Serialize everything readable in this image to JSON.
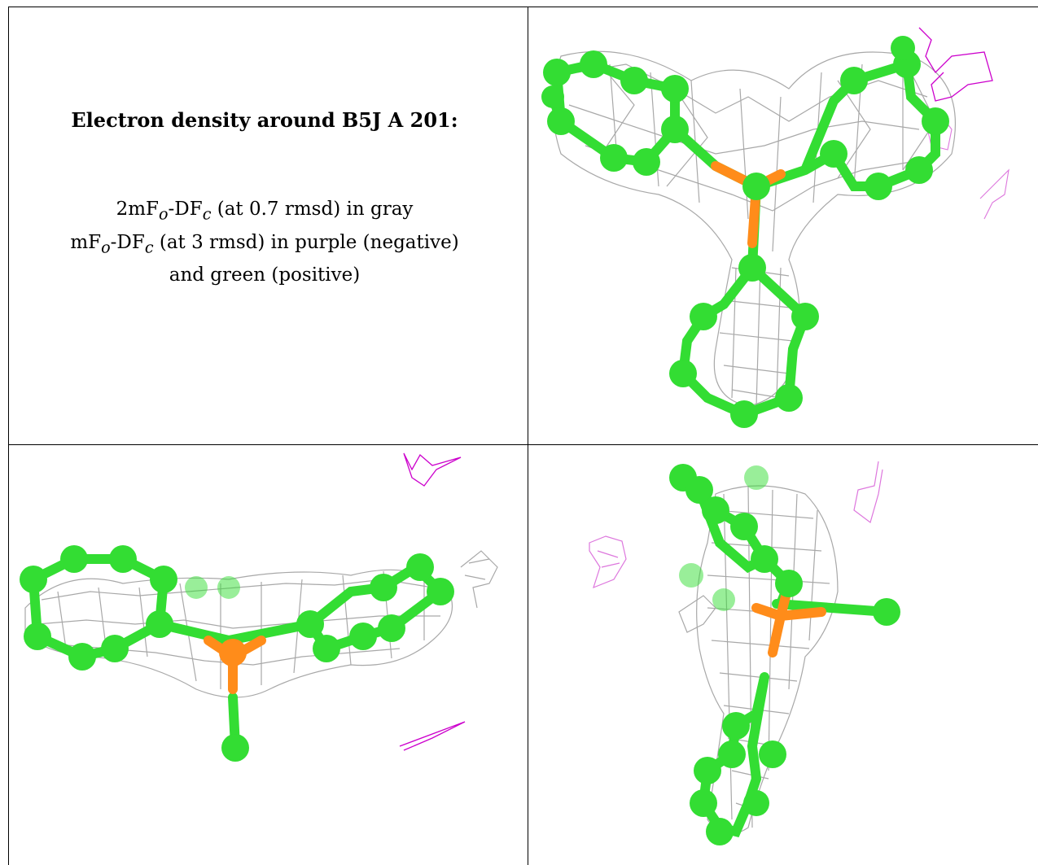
{
  "caption": {
    "title": "Electron density around B5J A 201:",
    "line1": {
      "pre": "2mF",
      "sub1": "o",
      "mid": "-DF",
      "sub2": "c",
      "post": " (at 0.7 rmsd) in gray"
    },
    "line2": {
      "pre": "mF",
      "sub1": "o",
      "mid": "-DF",
      "sub2": "c",
      "post": " (at 3 rmsd) in purple (negative)"
    },
    "line3": "and green (positive)"
  },
  "colors": {
    "carbon": "#33dd33",
    "phosphorus": "#ff8c1a",
    "density_2fofc": "#9a9a9a",
    "density_negative": "#cc00cc",
    "density_negative_light": "#dd77dd",
    "grid_line": "#000000"
  }
}
